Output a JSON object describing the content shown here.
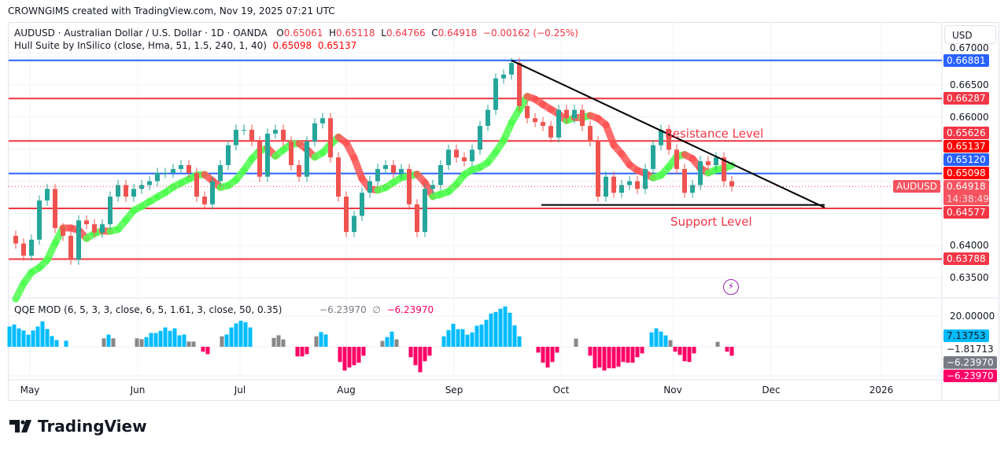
{
  "credit": "CROWNGIMS created with TradingView.com, Nov 19, 2025 07:21 UTC",
  "legend": {
    "symbol": "AUDUSD · Australian Dollar / U.S. Dollar · 1D · OANDA",
    "o_label": "O",
    "o": "0.65061",
    "h_label": "H",
    "h": "0.65118",
    "l_label": "L",
    "l": "0.64766",
    "c_label": "C",
    "c": "0.64918",
    "change": "−0.00162 (−0.25%)",
    "hull_name": "Hull Suite by InSilico (close, Hma, 51, 1.5, 240, 1, 40)",
    "hull_v1": "0.65098",
    "hull_v2": "0.65137"
  },
  "qqe_legend": {
    "name": "QQE MOD (6, 5, 3, 3, close, 6, 5, 1.61, 3, close, 50, 0.35)",
    "v1": "−6.23970",
    "sep": "∅",
    "v2": "−6.23970"
  },
  "currency_button": "USD",
  "symbol_tag": "AUDUSD",
  "annotations": {
    "resistance": "Resistance Level",
    "support": "Support Level"
  },
  "branding": "TradingView",
  "colors": {
    "up": "#26a69a",
    "down": "#ef5350",
    "hull_up": "#4cff4c",
    "hull_down": "#ff5252",
    "blue_line": "#2962ff",
    "red_line": "#f23645",
    "qqe_blue": "#00bcff",
    "qqe_gray": "#888888",
    "qqe_pink": "#ff0066"
  },
  "chart_data": {
    "type": "candlestick",
    "price_axis": {
      "ylim": [
        0.6325,
        0.6715
      ],
      "ticks": [
        "0.67000",
        "0.66500",
        "0.66000",
        "0.64000",
        "0.63500"
      ]
    },
    "x_ticks": [
      "May",
      "Jun",
      "Jul",
      "Aug",
      "Sep",
      "Oct",
      "Nov",
      "Dec",
      "2026"
    ],
    "closes": [
      0.6403,
      0.6384,
      0.6409,
      0.647,
      0.6488,
      0.6427,
      0.6415,
      0.6378,
      0.6439,
      0.6433,
      0.642,
      0.6433,
      0.6476,
      0.6494,
      0.6476,
      0.6488,
      0.6494,
      0.65,
      0.6513,
      0.6513,
      0.6519,
      0.6525,
      0.6513,
      0.6476,
      0.6464,
      0.65,
      0.6525,
      0.6556,
      0.658,
      0.658,
      0.6562,
      0.6507,
      0.6574,
      0.658,
      0.6562,
      0.6525,
      0.6507,
      0.6562,
      0.659,
      0.6598,
      0.6537,
      0.6476,
      0.6421,
      0.6446,
      0.6482,
      0.65,
      0.6519,
      0.6525,
      0.6513,
      0.6519,
      0.6464,
      0.6421,
      0.6488,
      0.6494,
      0.6525,
      0.6549,
      0.6537,
      0.6531,
      0.6549,
      0.6586,
      0.6611,
      0.666,
      0.6666,
      0.6684,
      0.6617,
      0.6598,
      0.6592,
      0.6586,
      0.6568,
      0.6611,
      0.6598,
      0.6611,
      0.6586,
      0.6562,
      0.6476,
      0.6507,
      0.6482,
      0.6494,
      0.65,
      0.6488,
      0.6519,
      0.6556,
      0.658,
      0.6549,
      0.6519,
      0.6482,
      0.6494,
      0.6531,
      0.6525,
      0.6537,
      0.65,
      0.6492
    ],
    "horizontal_levels": [
      {
        "price": 0.66881,
        "label": "0.66881",
        "color": "#2962ff"
      },
      {
        "price": 0.66287,
        "label": "0.66287",
        "color": "#f23645"
      },
      {
        "price": 0.65626,
        "label": "0.65626",
        "color": "#f23645"
      },
      {
        "price": 0.6512,
        "label": "0.65120",
        "color": "#2962ff"
      },
      {
        "price": 0.64577,
        "label": "0.64577",
        "color": "#f23645"
      },
      {
        "price": 0.63788,
        "label": "0.63788",
        "color": "#f23645"
      }
    ],
    "hull_labels": [
      {
        "label": "0.65137",
        "color": "#ff0000"
      },
      {
        "label": "0.65098",
        "color": "#ff0000"
      }
    ],
    "last_price": {
      "price": 0.64918,
      "label": "0.64918",
      "countdown": "14:38:49",
      "color": "#f7525f"
    },
    "trendline": {
      "from_price": 0.6688,
      "to_price": 0.6459
    },
    "support_line_price": 0.6463,
    "qqe": {
      "ticks": [
        "20.00000"
      ],
      "labels": [
        {
          "label": "7.13753",
          "color": "#00bcff",
          "text": "#131722"
        },
        {
          "label": "−1.81713",
          "color": "",
          "text": "#131722"
        },
        {
          "label": "−6.23970",
          "color": "#787b86",
          "text": "#ffffff"
        },
        {
          "label": "−6.23970",
          "color": "#ff0066",
          "text": "#ffffff"
        }
      ],
      "histogram": [
        [
          13.2,
          "b"
        ],
        [
          14.5,
          "b"
        ],
        [
          12,
          "b"
        ],
        [
          10.6,
          "b"
        ],
        [
          7.9,
          "b"
        ],
        [
          10.6,
          "b"
        ],
        [
          13.2,
          "b"
        ],
        [
          16.6,
          "b"
        ],
        [
          11.6,
          "b"
        ],
        [
          7,
          "b"
        ],
        [
          4.4,
          "b"
        ],
        [
          0,
          ""
        ],
        [
          3.9,
          "b"
        ],
        [
          0,
          ""
        ],
        [
          0,
          ""
        ],
        [
          0,
          ""
        ],
        [
          0,
          ""
        ],
        [
          0,
          ""
        ],
        [
          0,
          ""
        ],
        [
          0,
          ""
        ],
        [
          5.5,
          "g"
        ],
        [
          7.9,
          "b"
        ],
        [
          5.5,
          "g"
        ],
        [
          0,
          ""
        ],
        [
          0,
          ""
        ],
        [
          0,
          ""
        ],
        [
          0,
          ""
        ],
        [
          5.5,
          "g"
        ],
        [
          5,
          "g"
        ],
        [
          6.3,
          "b"
        ],
        [
          9,
          "b"
        ],
        [
          9,
          "b"
        ],
        [
          10.4,
          "b"
        ],
        [
          12.6,
          "b"
        ],
        [
          10.4,
          "b"
        ],
        [
          12,
          "b"
        ],
        [
          7.5,
          "b"
        ],
        [
          8,
          "b"
        ],
        [
          3.4,
          "g"
        ],
        [
          3.4,
          "g"
        ],
        [
          0,
          ""
        ],
        [
          -3.2,
          "p"
        ],
        [
          -4.8,
          "p"
        ],
        [
          0,
          ""
        ],
        [
          0,
          ""
        ],
        [
          6.8,
          "g"
        ],
        [
          8,
          "b"
        ],
        [
          12.6,
          "b"
        ],
        [
          15.2,
          "b"
        ],
        [
          17,
          "b"
        ],
        [
          16,
          "b"
        ],
        [
          12.6,
          "b"
        ],
        [
          0,
          ""
        ],
        [
          0,
          ""
        ],
        [
          0,
          ""
        ],
        [
          0,
          ""
        ],
        [
          5.8,
          "g"
        ],
        [
          7.5,
          "g"
        ],
        [
          4.8,
          "g"
        ],
        [
          0,
          ""
        ],
        [
          0,
          ""
        ],
        [
          -6.3,
          "p"
        ],
        [
          -6.3,
          "p"
        ],
        [
          -4.8,
          "p"
        ],
        [
          0,
          ""
        ],
        [
          6.8,
          "g"
        ],
        [
          9.6,
          "b"
        ],
        [
          8,
          "b"
        ],
        [
          0,
          ""
        ],
        [
          0,
          ""
        ],
        [
          -9.9,
          "p"
        ],
        [
          -15.5,
          "p"
        ],
        [
          -13.5,
          "p"
        ],
        [
          -12,
          "p"
        ],
        [
          -10.4,
          "p"
        ],
        [
          -5.8,
          "p"
        ],
        [
          0,
          ""
        ],
        [
          0,
          ""
        ],
        [
          0,
          ""
        ],
        [
          3.8,
          "g"
        ],
        [
          6.3,
          "b"
        ],
        [
          9.9,
          "b"
        ],
        [
          4.8,
          "g"
        ],
        [
          0,
          ""
        ],
        [
          0,
          ""
        ],
        [
          -6.8,
          "p"
        ],
        [
          -12,
          "p"
        ],
        [
          -16.6,
          "p"
        ],
        [
          -9.4,
          "p"
        ],
        [
          -5.8,
          "p"
        ],
        [
          0,
          ""
        ],
        [
          0,
          ""
        ],
        [
          6.8,
          "b"
        ],
        [
          10.9,
          "b"
        ],
        [
          15,
          "b"
        ],
        [
          11.5,
          "b"
        ],
        [
          11.5,
          "b"
        ],
        [
          7.9,
          "b"
        ],
        [
          9.4,
          "b"
        ],
        [
          13.7,
          "b"
        ],
        [
          14.5,
          "b"
        ],
        [
          17.6,
          "b"
        ],
        [
          21.7,
          "b"
        ],
        [
          22.7,
          "b"
        ],
        [
          24.8,
          "b"
        ],
        [
          26.3,
          "b"
        ],
        [
          22.2,
          "b"
        ],
        [
          14,
          "b"
        ],
        [
          6.8,
          "b"
        ],
        [
          0,
          ""
        ],
        [
          0,
          ""
        ],
        [
          0,
          ""
        ],
        [
          -3.8,
          "p"
        ],
        [
          -10.4,
          "p"
        ],
        [
          -13.5,
          "p"
        ],
        [
          -9.9,
          "p"
        ],
        [
          -3.8,
          "p"
        ],
        [
          0,
          ""
        ],
        [
          0,
          ""
        ],
        [
          0,
          ""
        ],
        [
          5.3,
          "g"
        ],
        [
          0,
          ""
        ],
        [
          0,
          ""
        ],
        [
          -5.8,
          "p"
        ],
        [
          -14,
          "p"
        ],
        [
          -13.5,
          "p"
        ],
        [
          -15.5,
          "p"
        ],
        [
          -14,
          "p"
        ],
        [
          -14,
          "p"
        ],
        [
          -13,
          "p"
        ],
        [
          -9.9,
          "p"
        ],
        [
          -10.4,
          "p"
        ],
        [
          -10.4,
          "p"
        ],
        [
          -6.8,
          "p"
        ],
        [
          -4.3,
          "p"
        ],
        [
          0,
          ""
        ],
        [
          9.4,
          "b"
        ],
        [
          12,
          "b"
        ],
        [
          9.9,
          "b"
        ],
        [
          7.4,
          "b"
        ],
        [
          4.3,
          "g"
        ],
        [
          -3.2,
          "p"
        ],
        [
          -5.3,
          "p"
        ],
        [
          -9.4,
          "p"
        ],
        [
          -9.9,
          "p"
        ],
        [
          -4.3,
          "p"
        ],
        [
          0,
          ""
        ],
        [
          0,
          ""
        ],
        [
          0,
          ""
        ],
        [
          0,
          ""
        ],
        [
          3.2,
          "g"
        ],
        [
          0,
          ""
        ],
        [
          -3.2,
          "p"
        ],
        [
          -5.8,
          "p"
        ]
      ]
    }
  }
}
